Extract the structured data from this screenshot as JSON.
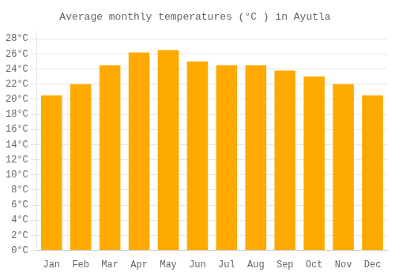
{
  "chart_data": {
    "type": "bar",
    "title": "Average monthly temperatures (°C ) in Ayutla",
    "categories": [
      "Jan",
      "Feb",
      "Mar",
      "Apr",
      "May",
      "Jun",
      "Jul",
      "Aug",
      "Sep",
      "Oct",
      "Nov",
      "Dec"
    ],
    "values": [
      20.5,
      22.0,
      24.5,
      26.2,
      26.5,
      25.0,
      24.5,
      24.5,
      23.8,
      23.0,
      22.0,
      20.5
    ],
    "color": "#FFAA00",
    "ylim": [
      0,
      29
    ],
    "yticks": [
      {
        "value": 0,
        "label": "0°C"
      },
      {
        "value": 2,
        "label": "2°C"
      },
      {
        "value": 4,
        "label": "4°C"
      },
      {
        "value": 6,
        "label": "6°C"
      },
      {
        "value": 8,
        "label": "8°C"
      },
      {
        "value": 10,
        "label": "10°C"
      },
      {
        "value": 12,
        "label": "12°C"
      },
      {
        "value": 14,
        "label": "14°C"
      },
      {
        "value": 16,
        "label": "16°C"
      },
      {
        "value": 18,
        "label": "18°C"
      },
      {
        "value": 20,
        "label": "20°C"
      },
      {
        "value": 22,
        "label": "22°C"
      },
      {
        "value": 24,
        "label": "24°C"
      },
      {
        "value": 26,
        "label": "26°C"
      },
      {
        "value": 28,
        "label": "28°C"
      }
    ],
    "grid": true
  }
}
